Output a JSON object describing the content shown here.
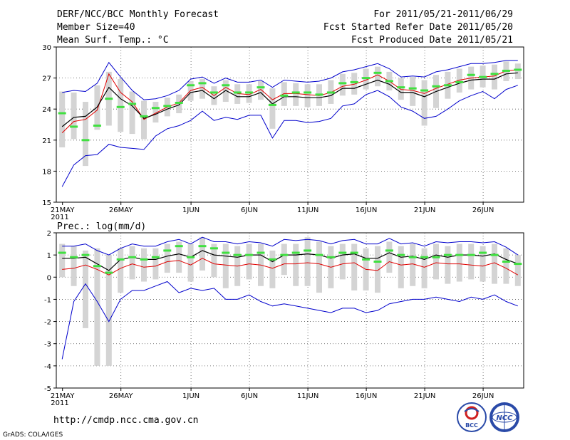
{
  "header": {
    "title": "DERF/NCC/BCC Monthly Forecast",
    "member_size": "Member Size=40",
    "temp_label": "Mean Surf. Temp.: °C",
    "period": "For 2011/05/21-2011/06/29",
    "started": "Fcst Started Refer Date 2011/05/20",
    "produced": "Fcst Produced Date 2011/05/21"
  },
  "footer": {
    "url": "http://cmdp.ncc.cma.gov.cn",
    "grads": "GrADS: COLA/IGES",
    "logo_bcc": "BCC",
    "logo_ncc": "NCC"
  },
  "colors": {
    "box": "#d4d4d4",
    "mean": "#000000",
    "median": "#e00000",
    "spread": "#0000cc",
    "obs": "#40e040"
  },
  "chart_data": [
    {
      "type": "box-ensemble",
      "title": "Mean Surf. Temp.: °C",
      "ylim": [
        15,
        30
      ],
      "yticks": [
        15,
        18,
        21,
        24,
        27,
        30
      ],
      "xticks": [
        "21MAY",
        "26MAY",
        "1JUN",
        "6JUN",
        "11JUN",
        "16JUN",
        "21JUN",
        "26JUN"
      ],
      "xticks_at_day": [
        0,
        5,
        11,
        16,
        21,
        26,
        31,
        36
      ],
      "year_label": "2011",
      "days": 40,
      "series": [
        {
          "name": "mean",
          "values": [
            22.3,
            23.2,
            23.3,
            24.2,
            26.1,
            25.0,
            24.3,
            23.1,
            23.5,
            24.0,
            24.4,
            25.6,
            25.8,
            25.0,
            25.8,
            25.2,
            25.2,
            25.6,
            24.5,
            25.2,
            25.2,
            25.1,
            25.1,
            25.3,
            26.0,
            26.0,
            26.4,
            26.8,
            26.4,
            25.6,
            25.6,
            25.2,
            25.7,
            26.1,
            26.5,
            26.8,
            26.9,
            26.9,
            27.4,
            27.5
          ]
        },
        {
          "name": "median",
          "values": [
            21.7,
            22.8,
            23.0,
            23.9,
            27.4,
            25.6,
            24.7,
            23.0,
            23.6,
            24.2,
            24.6,
            25.8,
            26.1,
            25.3,
            26.1,
            25.5,
            25.4,
            25.9,
            24.9,
            25.5,
            25.5,
            25.4,
            25.3,
            25.6,
            26.2,
            26.4,
            26.8,
            27.3,
            26.7,
            25.9,
            25.8,
            25.5,
            26.0,
            26.4,
            26.8,
            27.0,
            27.1,
            27.2,
            27.7,
            27.8
          ]
        },
        {
          "name": "max",
          "values": [
            25.6,
            25.8,
            25.7,
            26.5,
            28.5,
            27.1,
            25.8,
            24.9,
            25.0,
            25.3,
            25.8,
            26.9,
            27.1,
            26.5,
            27.0,
            26.6,
            26.6,
            26.8,
            26.1,
            26.8,
            26.7,
            26.6,
            26.7,
            27.0,
            27.6,
            27.8,
            28.1,
            28.4,
            27.9,
            27.1,
            27.2,
            27.1,
            27.6,
            27.8,
            28.1,
            28.4,
            28.4,
            28.5,
            28.7,
            28.7
          ]
        },
        {
          "name": "min",
          "values": [
            16.5,
            18.6,
            19.5,
            19.6,
            20.6,
            20.3,
            20.2,
            20.1,
            21.4,
            22.1,
            22.4,
            22.9,
            23.8,
            22.9,
            23.2,
            23.0,
            23.4,
            23.4,
            21.2,
            22.9,
            22.9,
            22.7,
            22.8,
            23.1,
            24.3,
            24.5,
            25.4,
            25.8,
            25.2,
            24.2,
            23.8,
            23.1,
            23.3,
            24.0,
            24.8,
            25.3,
            25.7,
            25.0,
            25.9,
            26.3
          ]
        },
        {
          "name": "box_low",
          "values": [
            20.3,
            21.1,
            18.5,
            22.0,
            22.4,
            21.8,
            21.6,
            21.1,
            22.7,
            23.3,
            23.6,
            24.8,
            25.0,
            24.4,
            24.7,
            24.5,
            24.6,
            24.9,
            22.1,
            24.3,
            24.3,
            24.2,
            24.3,
            24.5,
            25.3,
            25.4,
            25.9,
            26.2,
            25.8,
            24.9,
            24.3,
            22.4,
            24.1,
            25.0,
            25.6,
            25.9,
            26.1,
            25.9,
            26.7,
            26.9
          ]
        },
        {
          "name": "box_high",
          "values": [
            25.7,
            25.6,
            24.7,
            26.3,
            27.6,
            26.9,
            25.7,
            24.8,
            24.7,
            25.1,
            25.4,
            26.7,
            26.9,
            26.2,
            26.8,
            26.4,
            26.4,
            26.7,
            26.0,
            26.6,
            26.5,
            26.4,
            26.4,
            26.8,
            27.4,
            27.5,
            27.9,
            28.1,
            27.6,
            27.0,
            27.1,
            26.8,
            27.3,
            27.6,
            27.9,
            28.1,
            28.2,
            28.3,
            28.6,
            28.4
          ]
        },
        {
          "name": "obs",
          "values": [
            23.6,
            22.3,
            21.0,
            22.4,
            25.0,
            24.2,
            24.5,
            23.3,
            24.1,
            24.3,
            24.6,
            26.3,
            26.5,
            25.6,
            26.3,
            25.6,
            25.6,
            26.1,
            24.4,
            25.3,
            25.6,
            25.6,
            25.4,
            25.6,
            26.5,
            26.6,
            27.0,
            27.5,
            26.7,
            26.1,
            26.0,
            25.8,
            26.2,
            26.3,
            26.6,
            27.3,
            27.1,
            27.4,
            27.7,
            27.8
          ]
        }
      ]
    },
    {
      "type": "box-ensemble",
      "title": "Prec.: log(mm/d)",
      "ylim": [
        -5,
        2
      ],
      "yticks": [
        -5,
        -4,
        -3,
        -2,
        -1,
        0,
        1,
        2
      ],
      "xticks": [
        "21MAY",
        "26MAY",
        "1JUN",
        "6JUN",
        "11JUN",
        "16JUN",
        "21JUN",
        "26JUN"
      ],
      "xticks_at_day": [
        0,
        5,
        11,
        16,
        21,
        26,
        31,
        36
      ],
      "year_label": "2011",
      "days": 40,
      "series": [
        {
          "name": "mean",
          "values": [
            0.85,
            0.85,
            0.9,
            0.6,
            0.3,
            0.8,
            0.9,
            0.8,
            0.8,
            0.95,
            1.05,
            0.9,
            1.2,
            1.0,
            0.95,
            0.9,
            1.0,
            1.0,
            0.7,
            1.0,
            1.0,
            1.05,
            1.0,
            0.85,
            1.0,
            1.05,
            0.85,
            0.85,
            1.1,
            0.9,
            0.95,
            0.8,
            1.0,
            0.9,
            1.0,
            1.0,
            0.95,
            1.05,
            0.8,
            0.6
          ]
        },
        {
          "name": "median",
          "values": [
            0.35,
            0.4,
            0.55,
            0.35,
            0.1,
            0.4,
            0.6,
            0.45,
            0.5,
            0.7,
            0.75,
            0.55,
            0.85,
            0.6,
            0.55,
            0.5,
            0.6,
            0.55,
            0.4,
            0.6,
            0.6,
            0.65,
            0.6,
            0.45,
            0.6,
            0.65,
            0.35,
            0.3,
            0.7,
            0.55,
            0.6,
            0.45,
            0.65,
            0.6,
            0.6,
            0.55,
            0.5,
            0.65,
            0.4,
            0.1
          ]
        },
        {
          "name": "max",
          "values": [
            1.4,
            1.4,
            1.5,
            1.2,
            1.0,
            1.3,
            1.5,
            1.4,
            1.4,
            1.6,
            1.7,
            1.5,
            1.8,
            1.6,
            1.6,
            1.5,
            1.6,
            1.55,
            1.4,
            1.7,
            1.65,
            1.7,
            1.65,
            1.5,
            1.65,
            1.7,
            1.5,
            1.5,
            1.75,
            1.5,
            1.55,
            1.4,
            1.6,
            1.55,
            1.6,
            1.6,
            1.55,
            1.6,
            1.35,
            1.0
          ]
        },
        {
          "name": "min",
          "values": [
            -3.7,
            -1.1,
            -0.3,
            -1.1,
            -2.0,
            -1.0,
            -0.6,
            -0.6,
            -0.4,
            -0.2,
            -0.7,
            -0.5,
            -0.6,
            -0.5,
            -1.0,
            -1.0,
            -0.8,
            -1.1,
            -1.3,
            -1.2,
            -1.3,
            -1.4,
            -1.5,
            -1.6,
            -1.4,
            -1.4,
            -1.6,
            -1.5,
            -1.2,
            -1.1,
            -1.0,
            -1.0,
            -0.9,
            -1.0,
            -1.1,
            -0.9,
            -1.0,
            -0.8,
            -1.1,
            -1.3
          ]
        },
        {
          "name": "box_low",
          "values": [
            0.0,
            -0.4,
            -2.3,
            -4.0,
            -4.0,
            -0.7,
            -0.1,
            -0.2,
            -0.1,
            0.2,
            0.2,
            -0.2,
            0.3,
            0.0,
            -0.5,
            -0.4,
            -0.1,
            -0.4,
            -0.5,
            0.1,
            -0.4,
            -0.4,
            -0.7,
            -0.5,
            -0.1,
            -0.6,
            -0.6,
            -0.7,
            0.2,
            -0.5,
            -0.4,
            -0.5,
            -0.1,
            -0.3,
            -0.2,
            -0.1,
            -0.2,
            -0.3,
            -0.3,
            -0.4
          ]
        },
        {
          "name": "box_high",
          "values": [
            1.5,
            1.4,
            1.2,
            1.3,
            1.0,
            1.3,
            1.4,
            1.3,
            1.3,
            1.5,
            1.6,
            1.5,
            1.8,
            1.5,
            1.5,
            1.4,
            1.5,
            1.5,
            1.2,
            1.5,
            1.5,
            1.8,
            1.6,
            1.4,
            1.5,
            1.5,
            1.3,
            1.4,
            1.6,
            1.4,
            1.5,
            1.3,
            1.5,
            1.4,
            1.5,
            1.5,
            1.4,
            1.5,
            1.3,
            1.0
          ]
        },
        {
          "name": "obs",
          "values": [
            1.1,
            0.9,
            1.0,
            0.5,
            0.2,
            0.8,
            0.9,
            0.8,
            0.9,
            1.2,
            1.4,
            0.9,
            1.4,
            1.3,
            1.1,
            1.0,
            1.0,
            1.1,
            0.8,
            1.0,
            1.1,
            1.2,
            1.0,
            0.9,
            1.1,
            1.1,
            0.8,
            0.7,
            1.2,
            1.0,
            0.9,
            0.9,
            0.9,
            1.0,
            1.0,
            1.0,
            1.1,
            1.0,
            0.7,
            0.6
          ]
        }
      ]
    }
  ]
}
